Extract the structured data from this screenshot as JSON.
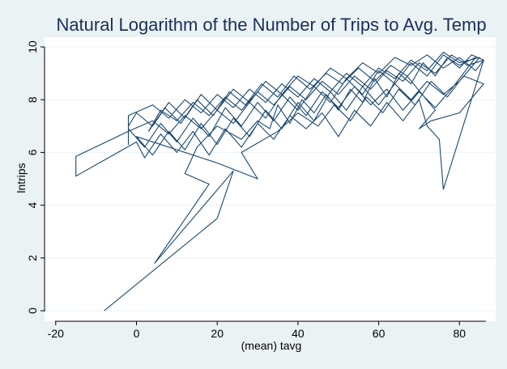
{
  "chart_data": {
    "type": "line",
    "title": "Natural Logarithm of the Number of Trips to Avg. Temp",
    "xlabel": "(mean) tavg",
    "ylabel": "lntrips",
    "xlim": [
      -20,
      90
    ],
    "ylim": [
      0,
      10.3
    ],
    "xticks": [
      -20,
      0,
      20,
      40,
      60,
      80
    ],
    "yticks": [
      0,
      2,
      4,
      6,
      8,
      10
    ],
    "grid": "horizontal",
    "legend": "none",
    "series": [
      {
        "points": [
          [
            -8,
            0.0
          ],
          [
            20,
            3.5
          ],
          [
            24,
            5.3
          ],
          [
            4.5,
            1.8
          ],
          [
            18,
            4.8
          ],
          [
            12,
            5.2
          ],
          [
            15,
            6.2
          ],
          [
            20,
            7.0
          ],
          [
            26,
            6.5
          ],
          [
            30,
            7.2
          ],
          [
            33,
            6.9
          ],
          [
            35,
            7.8
          ],
          [
            38,
            7.1
          ],
          [
            41,
            8.0
          ],
          [
            44,
            7.5
          ],
          [
            47,
            8.2
          ],
          [
            50,
            7.6
          ],
          [
            53,
            8.4
          ],
          [
            56,
            7.9
          ],
          [
            59,
            8.8
          ],
          [
            62,
            8.1
          ],
          [
            65,
            9.0
          ],
          [
            68,
            8.6
          ],
          [
            71,
            9.4
          ],
          [
            74,
            8.9
          ],
          [
            77,
            9.6
          ],
          [
            80,
            9.2
          ],
          [
            83,
            9.7
          ],
          [
            86,
            9.5
          ],
          [
            76,
            4.6
          ],
          [
            75,
            6.5
          ],
          [
            72,
            7.0
          ],
          [
            70,
            8.0
          ],
          [
            66,
            7.2
          ],
          [
            62,
            7.9
          ],
          [
            58,
            7.0
          ],
          [
            54,
            7.6
          ],
          [
            50,
            6.6
          ],
          [
            46,
            7.5
          ],
          [
            42,
            6.9
          ],
          [
            38,
            7.4
          ],
          [
            34,
            6.5
          ],
          [
            30,
            7.1
          ],
          [
            26,
            6.2
          ],
          [
            22,
            6.9
          ],
          [
            18,
            5.9
          ],
          [
            14,
            6.8
          ],
          [
            10,
            6.0
          ],
          [
            6,
            6.7
          ],
          [
            2,
            5.8
          ],
          [
            0,
            6.4
          ],
          [
            -15,
            5.1
          ],
          [
            -15,
            5.85
          ],
          [
            -2,
            6.8
          ],
          [
            4,
            7.2
          ],
          [
            8,
            6.7
          ],
          [
            12,
            7.4
          ],
          [
            16,
            6.9
          ],
          [
            20,
            7.6
          ],
          [
            24,
            7.1
          ],
          [
            28,
            7.9
          ],
          [
            32,
            7.3
          ],
          [
            36,
            8.2
          ],
          [
            40,
            7.6
          ],
          [
            44,
            8.5
          ],
          [
            48,
            7.9
          ],
          [
            52,
            8.8
          ],
          [
            56,
            8.2
          ],
          [
            60,
            9.1
          ],
          [
            64,
            8.6
          ],
          [
            68,
            9.4
          ],
          [
            72,
            8.9
          ],
          [
            76,
            9.7
          ],
          [
            80,
            9.3
          ],
          [
            84,
            9.6
          ],
          [
            78,
            8.4
          ],
          [
            74,
            7.7
          ],
          [
            70,
            8.3
          ],
          [
            66,
            7.6
          ],
          [
            62,
            8.4
          ],
          [
            58,
            7.8
          ],
          [
            54,
            8.5
          ],
          [
            50,
            7.7
          ],
          [
            46,
            8.3
          ],
          [
            42,
            7.4
          ],
          [
            38,
            8.1
          ],
          [
            34,
            7.2
          ],
          [
            30,
            7.9
          ],
          [
            26,
            7.0
          ],
          [
            22,
            7.7
          ],
          [
            18,
            6.6
          ],
          [
            14,
            7.3
          ],
          [
            10,
            6.4
          ],
          [
            6,
            7.1
          ],
          [
            2,
            6.2
          ],
          [
            -2,
            6.9
          ],
          [
            -2,
            7.4
          ],
          [
            4,
            7.8
          ],
          [
            8,
            7.3
          ],
          [
            12,
            8.0
          ],
          [
            16,
            7.5
          ],
          [
            20,
            8.2
          ],
          [
            24,
            7.7
          ],
          [
            28,
            8.4
          ],
          [
            32,
            7.9
          ],
          [
            36,
            8.6
          ],
          [
            40,
            8.1
          ],
          [
            44,
            8.8
          ],
          [
            48,
            8.3
          ],
          [
            52,
            9.0
          ],
          [
            56,
            8.5
          ],
          [
            60,
            9.2
          ],
          [
            64,
            8.8
          ],
          [
            68,
            9.5
          ],
          [
            72,
            9.1
          ],
          [
            76,
            9.8
          ],
          [
            80,
            9.4
          ],
          [
            85,
            9.6
          ],
          [
            80,
            8.7
          ],
          [
            76,
            8.2
          ],
          [
            72,
            8.7
          ],
          [
            68,
            8.0
          ],
          [
            64,
            8.6
          ],
          [
            60,
            7.8
          ],
          [
            56,
            8.5
          ],
          [
            52,
            7.6
          ],
          [
            48,
            8.3
          ],
          [
            44,
            7.2
          ],
          [
            40,
            7.9
          ],
          [
            36,
            6.9
          ],
          [
            32,
            7.6
          ],
          [
            28,
            6.6
          ],
          [
            24,
            7.3
          ],
          [
            20,
            6.3
          ],
          [
            16,
            7.1
          ],
          [
            12,
            6.1
          ],
          [
            8,
            6.8
          ],
          [
            4,
            5.9
          ],
          [
            0,
            6.6
          ],
          [
            20,
            5.6
          ],
          [
            30,
            5.0
          ],
          [
            26,
            6.0
          ],
          [
            35,
            6.8
          ],
          [
            40,
            7.5
          ],
          [
            45,
            7.0
          ],
          [
            49,
            7.8
          ],
          [
            53,
            7.2
          ],
          [
            57,
            8.1
          ],
          [
            61,
            7.5
          ],
          [
            65,
            8.4
          ],
          [
            69,
            7.8
          ],
          [
            73,
            8.7
          ],
          [
            77,
            8.1
          ],
          [
            81,
            8.9
          ],
          [
            86,
            8.6
          ],
          [
            80,
            7.5
          ],
          [
            73,
            7.2
          ],
          [
            70,
            6.9
          ],
          [
            74,
            7.6
          ],
          [
            67,
            8.9
          ],
          [
            63,
            9.3
          ],
          [
            59,
            8.7
          ],
          [
            55,
            9.2
          ],
          [
            51,
            8.6
          ],
          [
            47,
            9.0
          ],
          [
            43,
            8.4
          ],
          [
            39,
            8.9
          ],
          [
            35,
            8.1
          ],
          [
            31,
            8.6
          ],
          [
            27,
            7.8
          ],
          [
            23,
            8.3
          ],
          [
            19,
            7.4
          ],
          [
            15,
            8.0
          ],
          [
            11,
            7.1
          ],
          [
            7,
            7.7
          ],
          [
            3,
            6.8
          ],
          [
            6,
            7.6
          ],
          [
            10,
            7.2
          ],
          [
            14,
            7.9
          ],
          [
            18,
            7.4
          ],
          [
            22,
            8.1
          ],
          [
            26,
            7.6
          ],
          [
            30,
            8.3
          ],
          [
            34,
            7.8
          ],
          [
            38,
            8.5
          ],
          [
            42,
            8.0
          ],
          [
            46,
            8.7
          ],
          [
            50,
            8.2
          ],
          [
            54,
            8.9
          ],
          [
            58,
            8.4
          ],
          [
            62,
            9.1
          ],
          [
            66,
            8.7
          ],
          [
            70,
            9.4
          ],
          [
            74,
            9.0
          ],
          [
            78,
            9.7
          ],
          [
            82,
            9.3
          ],
          [
            86,
            9.5
          ],
          [
            84,
            9.1
          ],
          [
            80,
            9.6
          ],
          [
            76,
            9.2
          ],
          [
            72,
            9.7
          ],
          [
            68,
            9.3
          ],
          [
            64,
            9.6
          ],
          [
            60,
            9.0
          ],
          [
            56,
            9.4
          ],
          [
            52,
            8.8
          ],
          [
            48,
            9.2
          ],
          [
            44,
            8.5
          ],
          [
            40,
            8.9
          ],
          [
            36,
            8.2
          ],
          [
            32,
            8.7
          ],
          [
            28,
            7.9
          ],
          [
            24,
            8.4
          ],
          [
            20,
            7.6
          ],
          [
            16,
            8.2
          ],
          [
            12,
            7.3
          ],
          [
            8,
            7.9
          ],
          [
            4,
            7.0
          ],
          [
            0,
            7.5
          ],
          [
            -2,
            7.0
          ],
          [
            -2,
            6.3
          ],
          [
            -2,
            7.4
          ]
        ]
      }
    ]
  }
}
